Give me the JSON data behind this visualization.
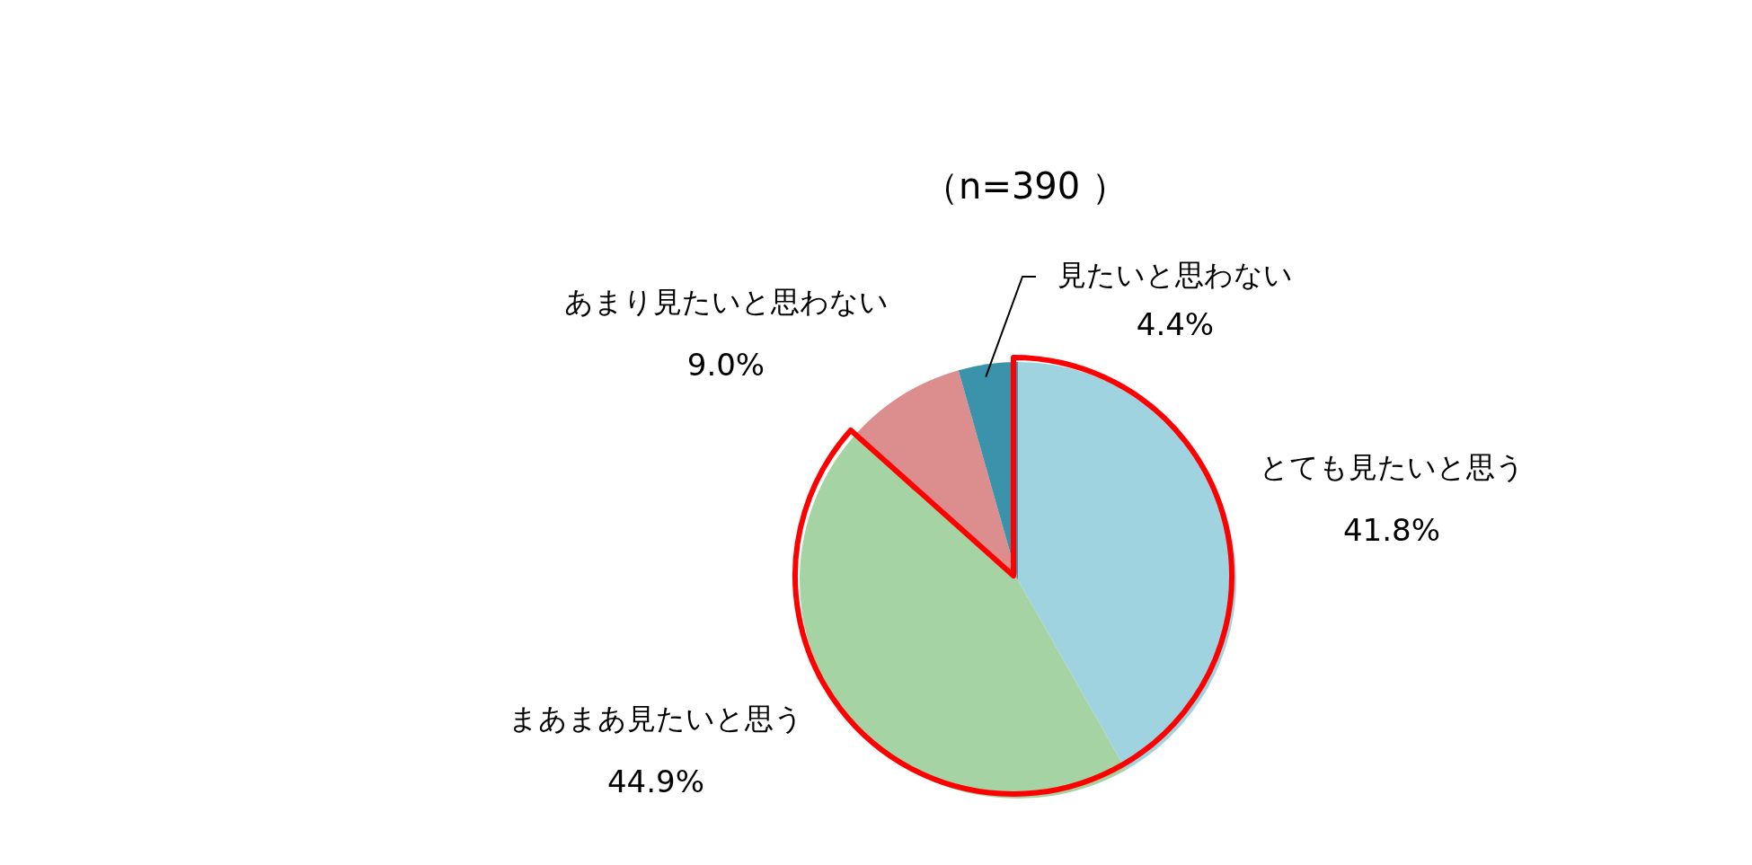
{
  "chart_data": {
    "type": "pie",
    "title": "（n=390 ）",
    "categories": [
      "とても見たいと思う",
      "まあまあ見たいと思う",
      "あまり見たいと思わない",
      "見たいと思わない"
    ],
    "values": [
      41.8,
      44.9,
      9.0,
      4.4
    ],
    "value_labels": [
      "41.8%",
      "44.9%",
      "9.0%",
      "4.4%"
    ],
    "colors": [
      "#a0d3e0",
      "#a6d3a3",
      "#dc8e8e",
      "#3a93ab"
    ],
    "legend": false
  }
}
